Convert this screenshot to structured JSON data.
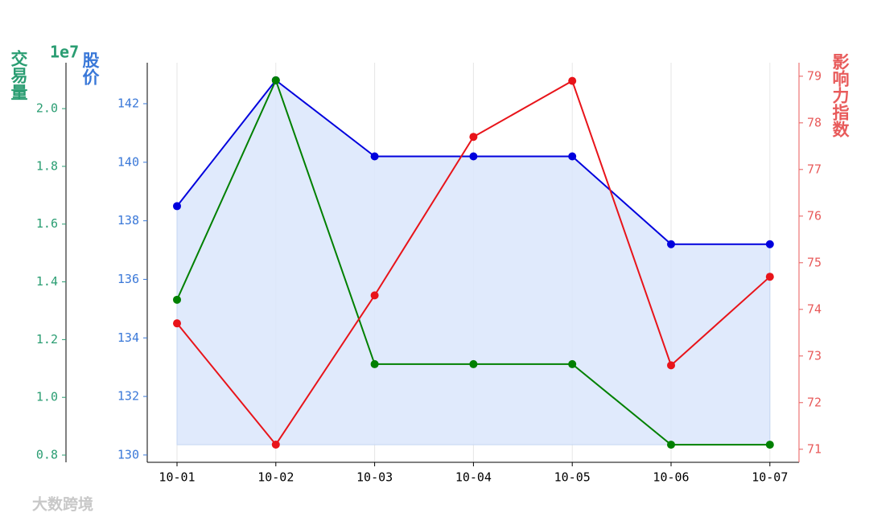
{
  "chart_data": {
    "type": "line",
    "categories": [
      "10-01",
      "10-02",
      "10-03",
      "10-04",
      "10-05",
      "10-06",
      "10-07"
    ],
    "series": [
      {
        "name": "股价",
        "color": "#0000dd",
        "axis": "y",
        "values": [
          138.5,
          142.8,
          140.2,
          140.2,
          140.2,
          137.2,
          137.2
        ],
        "fill_color": "#dbe6fb",
        "fill_to": 130.35
      },
      {
        "name": "交易量",
        "color": "#008000",
        "axis": "y3",
        "values": [
          1.338,
          2.098,
          1.115,
          1.115,
          1.115,
          0.836,
          0.836
        ]
      },
      {
        "name": "影响力指数",
        "color": "#e8141a",
        "axis": "y2",
        "values": [
          73.7,
          71.1,
          74.3,
          77.7,
          78.9,
          72.8,
          74.7
        ]
      }
    ],
    "y_label": "股价",
    "y_color": "#3a78d8",
    "ylim": [
      129.75,
      143.4
    ],
    "yticks": [
      130,
      132,
      134,
      136,
      138,
      140,
      142
    ],
    "y2_label": "影响力指数",
    "y2_color": "#e85a5a",
    "y2lim": [
      70.72,
      79.29
    ],
    "y2ticks": [
      71,
      72,
      73,
      74,
      75,
      76,
      77,
      78,
      79
    ],
    "y3_label": "交易量",
    "y3_color": "#2a9d72",
    "y3_offset_label": "1e7",
    "y3lim": [
      0.775,
      2.159
    ],
    "y3ticks": [
      0.8,
      {
        "value": 1,
        "label": "1.0"
      },
      1.2,
      1.4,
      1.6,
      1.8,
      {
        "value": 2,
        "label": "2.0"
      }
    ],
    "grid": "x",
    "watermark": "大数跨境"
  }
}
